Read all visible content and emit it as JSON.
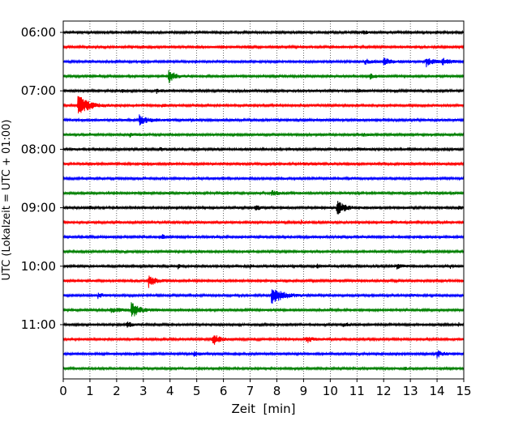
{
  "chart_data": {
    "type": "line",
    "title": "",
    "xlabel": "Zeit  [min]",
    "ylabel": "UTC (Lokalzeit = UTC + 01:00)",
    "xlim": [
      0,
      15
    ],
    "x_ticks": [
      "0",
      "1",
      "2",
      "3",
      "4",
      "5",
      "6",
      "7",
      "8",
      "9",
      "10",
      "11",
      "12",
      "13",
      "14",
      "15"
    ],
    "y_ticks": [
      "06:00",
      "07:00",
      "08:00",
      "09:00",
      "10:00",
      "11:00"
    ],
    "y_tick_trace_index": [
      0,
      4,
      8,
      12,
      16,
      20
    ],
    "grid": "vertical-dotted",
    "trace_interval_min": 15,
    "trace_colors": [
      "#000000",
      "#ff0000",
      "#0000ff",
      "#008000"
    ],
    "traces": [
      {
        "start": "06:00",
        "color": "#000000",
        "events": [
          {
            "t": 11.25,
            "amp": 0.6,
            "dur": 0.15
          }
        ]
      },
      {
        "start": "06:15",
        "color": "#ff0000",
        "events": []
      },
      {
        "start": "06:30",
        "color": "#0000ff",
        "events": [
          {
            "t": 11.3,
            "amp": 0.5,
            "dur": 0.4
          },
          {
            "t": 12.0,
            "amp": 0.7,
            "dur": 0.5
          },
          {
            "t": 13.6,
            "amp": 1.0,
            "dur": 0.35
          },
          {
            "t": 14.2,
            "amp": 0.8,
            "dur": 0.4
          }
        ]
      },
      {
        "start": "06:45",
        "color": "#008000",
        "events": [
          {
            "t": 3.95,
            "amp": 1.5,
            "dur": 0.35
          },
          {
            "t": 11.5,
            "amp": 0.5,
            "dur": 0.3
          }
        ]
      },
      {
        "start": "07:00",
        "color": "#000000",
        "events": [
          {
            "t": 2.2,
            "amp": 0.3,
            "dur": 0.1
          },
          {
            "t": 3.5,
            "amp": 0.4,
            "dur": 0.2
          },
          {
            "t": 11.0,
            "amp": 0.4,
            "dur": 0.2
          }
        ]
      },
      {
        "start": "07:15",
        "color": "#ff0000",
        "events": [
          {
            "t": 0.55,
            "amp": 2.5,
            "dur": 0.6
          },
          {
            "t": 3.7,
            "amp": 0.35,
            "dur": 0.2
          }
        ]
      },
      {
        "start": "07:30",
        "color": "#0000ff",
        "events": [
          {
            "t": 2.85,
            "amp": 1.0,
            "dur": 0.6
          },
          {
            "t": 4.8,
            "amp": 0.3,
            "dur": 0.1
          },
          {
            "t": 8.8,
            "amp": 0.3,
            "dur": 0.1
          }
        ]
      },
      {
        "start": "07:45",
        "color": "#008000",
        "events": [
          {
            "t": 2.5,
            "amp": 0.6,
            "dur": 0.25
          },
          {
            "t": 11.25,
            "amp": 0.4,
            "dur": 0.2
          }
        ]
      },
      {
        "start": "08:00",
        "color": "#000000",
        "events": [
          {
            "t": 3.6,
            "amp": 0.4,
            "dur": 0.4
          },
          {
            "t": 11.0,
            "amp": 0.3,
            "dur": 0.3
          }
        ]
      },
      {
        "start": "08:15",
        "color": "#ff0000",
        "events": [
          {
            "t": 9.0,
            "amp": 0.3,
            "dur": 0.3
          }
        ]
      },
      {
        "start": "08:30",
        "color": "#0000ff",
        "events": []
      },
      {
        "start": "08:45",
        "color": "#008000",
        "events": [
          {
            "t": 7.8,
            "amp": 0.6,
            "dur": 0.4
          }
        ]
      },
      {
        "start": "09:00",
        "color": "#000000",
        "events": [
          {
            "t": 1.0,
            "amp": 0.6,
            "dur": 0.1
          },
          {
            "t": 7.2,
            "amp": 0.4,
            "dur": 0.4
          },
          {
            "t": 10.25,
            "amp": 1.5,
            "dur": 0.5
          },
          {
            "t": 14.8,
            "amp": 0.4,
            "dur": 0.2
          }
        ]
      },
      {
        "start": "09:15",
        "color": "#ff0000",
        "events": [
          {
            "t": 8.9,
            "amp": 0.5,
            "dur": 0.1
          },
          {
            "t": 12.3,
            "amp": 0.3,
            "dur": 0.2
          }
        ]
      },
      {
        "start": "09:30",
        "color": "#0000ff",
        "events": [
          {
            "t": 3.7,
            "amp": 0.4,
            "dur": 0.2
          },
          {
            "t": 5.6,
            "amp": 0.3,
            "dur": 0.1
          }
        ]
      },
      {
        "start": "09:45",
        "color": "#008000",
        "events": [
          {
            "t": 5.1,
            "amp": 0.3,
            "dur": 0.1
          },
          {
            "t": 13.5,
            "amp": 0.3,
            "dur": 0.1
          }
        ]
      },
      {
        "start": "10:00",
        "color": "#000000",
        "events": [
          {
            "t": 4.3,
            "amp": 0.5,
            "dur": 0.1
          },
          {
            "t": 7.0,
            "amp": 0.4,
            "dur": 0.2
          },
          {
            "t": 9.5,
            "amp": 0.4,
            "dur": 0.2
          },
          {
            "t": 12.5,
            "amp": 0.5,
            "dur": 0.3
          },
          {
            "t": 14.5,
            "amp": 0.4,
            "dur": 0.1
          }
        ]
      },
      {
        "start": "10:15",
        "color": "#ff0000",
        "events": [
          {
            "t": 3.2,
            "amp": 1.4,
            "dur": 0.4
          }
        ]
      },
      {
        "start": "10:30",
        "color": "#0000ff",
        "events": [
          {
            "t": 1.3,
            "amp": 0.5,
            "dur": 0.3
          },
          {
            "t": 7.8,
            "amp": 1.8,
            "dur": 0.7
          },
          {
            "t": 13.0,
            "amp": 0.3,
            "dur": 0.2
          }
        ]
      },
      {
        "start": "10:45",
        "color": "#008000",
        "events": [
          {
            "t": 1.8,
            "amp": 0.6,
            "dur": 0.5
          },
          {
            "t": 2.55,
            "amp": 1.6,
            "dur": 0.5
          },
          {
            "t": 4.7,
            "amp": 0.3,
            "dur": 0.1
          }
        ]
      },
      {
        "start": "11:00",
        "color": "#000000",
        "events": [
          {
            "t": 2.4,
            "amp": 0.6,
            "dur": 0.3
          },
          {
            "t": 10.5,
            "amp": 0.4,
            "dur": 0.4
          },
          {
            "t": 14.8,
            "amp": 0.5,
            "dur": 0.1
          }
        ]
      },
      {
        "start": "11:15",
        "color": "#ff0000",
        "events": [
          {
            "t": 5.6,
            "amp": 1.3,
            "dur": 0.35
          },
          {
            "t": 9.1,
            "amp": 0.8,
            "dur": 0.3
          }
        ]
      },
      {
        "start": "11:30",
        "color": "#0000ff",
        "events": [
          {
            "t": 4.9,
            "amp": 0.4,
            "dur": 0.4
          },
          {
            "t": 14.0,
            "amp": 0.7,
            "dur": 0.4
          }
        ]
      },
      {
        "start": "11:45",
        "color": "#008000",
        "events": [
          {
            "t": 12.8,
            "amp": 0.4,
            "dur": 0.1
          }
        ]
      }
    ]
  }
}
